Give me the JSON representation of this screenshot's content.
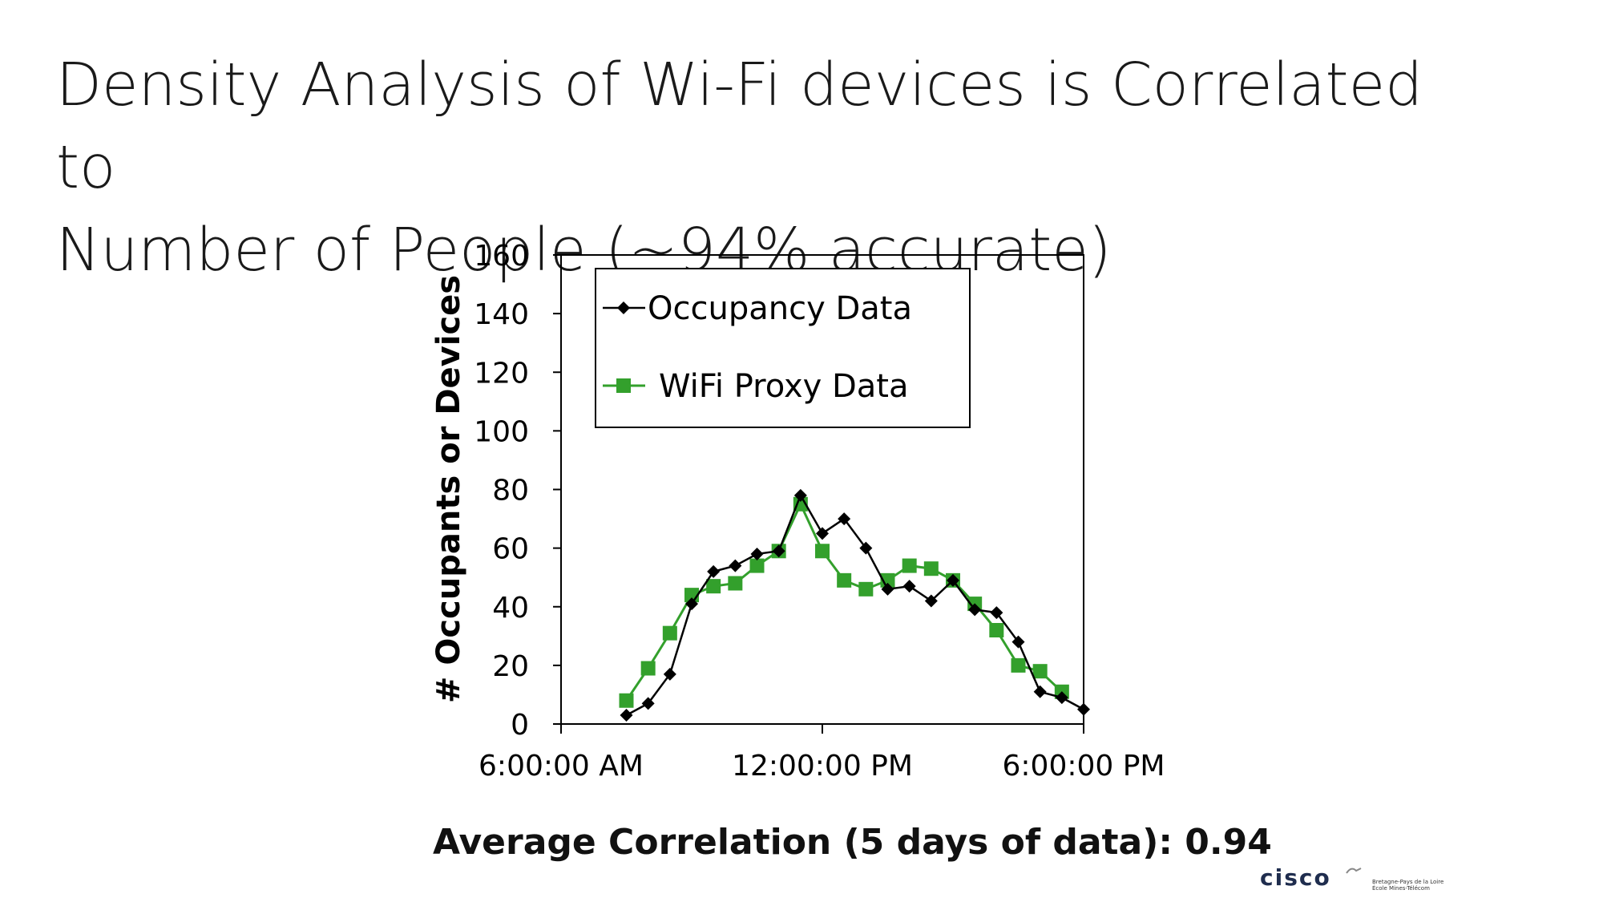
{
  "slide": {
    "title_line1": "Density Analysis of Wi-Fi devices is Correlated to",
    "title_line2": "Number of People (~94% accurate)",
    "caption": "Average Correlation (5 days of data): 0.94"
  },
  "footer": {
    "logo_text": "cisco",
    "school_line1": "Bretagne-Pays de la Loire",
    "school_line2": "École Mines-Télécom"
  },
  "chart_data": {
    "type": "line",
    "title": "",
    "xlabel": "",
    "ylabel": "# Occupants or Devices",
    "xlim": [
      6,
      18
    ],
    "ylim": [
      0,
      160
    ],
    "x_ticks": [
      {
        "value": 6,
        "label": "6:00:00 AM"
      },
      {
        "value": 12,
        "label": "12:00:00 PM"
      },
      {
        "value": 18,
        "label": "6:00:00 PM"
      }
    ],
    "y_ticks": [
      0,
      20,
      40,
      60,
      80,
      100,
      120,
      140,
      160
    ],
    "grid": false,
    "legend_position": "top-left",
    "series": [
      {
        "name": "Occupancy Data",
        "color": "#000000",
        "marker": "diamond",
        "points": [
          [
            7.5,
            3
          ],
          [
            8.0,
            7
          ],
          [
            8.5,
            17
          ],
          [
            9.0,
            41
          ],
          [
            9.5,
            52
          ],
          [
            10.0,
            54
          ],
          [
            10.5,
            58
          ],
          [
            11.0,
            59
          ],
          [
            11.5,
            78
          ],
          [
            12.0,
            65
          ],
          [
            12.5,
            70
          ],
          [
            13.0,
            60
          ],
          [
            13.5,
            46
          ],
          [
            14.0,
            47
          ],
          [
            14.5,
            42
          ],
          [
            15.0,
            49
          ],
          [
            15.5,
            39
          ],
          [
            16.0,
            38
          ],
          [
            16.5,
            28
          ],
          [
            17.0,
            11
          ],
          [
            17.5,
            9
          ],
          [
            18.0,
            5
          ]
        ]
      },
      {
        "name": "WiFi Proxy Data",
        "color": "#33a02c",
        "marker": "square",
        "points": [
          [
            7.5,
            8
          ],
          [
            8.0,
            19
          ],
          [
            8.5,
            31
          ],
          [
            9.0,
            44
          ],
          [
            9.5,
            47
          ],
          [
            10.0,
            48
          ],
          [
            10.5,
            54
          ],
          [
            11.0,
            59
          ],
          [
            11.5,
            75
          ],
          [
            12.0,
            59
          ],
          [
            12.5,
            49
          ],
          [
            13.0,
            46
          ],
          [
            13.5,
            49
          ],
          [
            14.0,
            54
          ],
          [
            14.5,
            53
          ],
          [
            15.0,
            49
          ],
          [
            15.5,
            41
          ],
          [
            16.0,
            32
          ],
          [
            16.5,
            20
          ],
          [
            17.0,
            18
          ],
          [
            17.5,
            11
          ]
        ]
      }
    ]
  }
}
